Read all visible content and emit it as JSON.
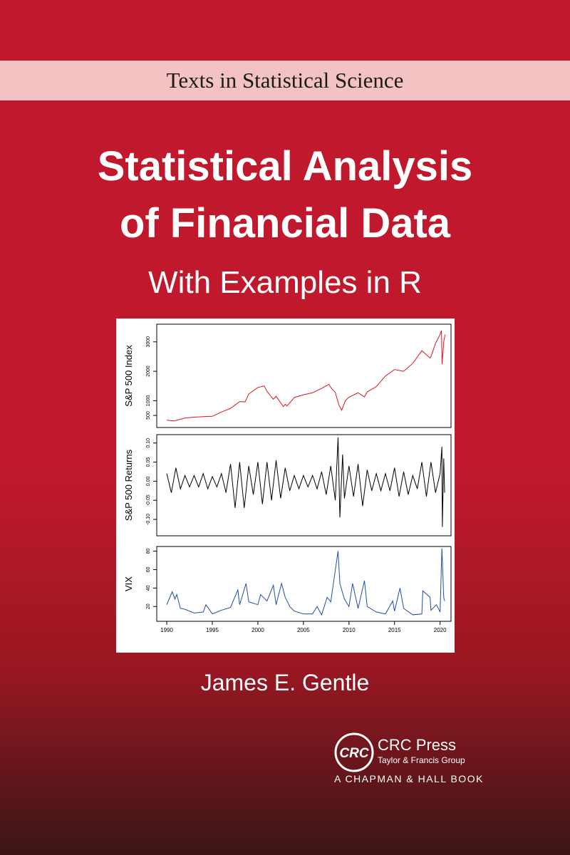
{
  "series_label": "Texts in Statistical Science",
  "title_lines": [
    "Statistical Analysis",
    "of Financial Data"
  ],
  "subtitle": "With Examples in R",
  "author": "James E. Gentle",
  "publisher": {
    "logo": "CRC",
    "name": "CRC Press",
    "group": "Taylor & Francis Group",
    "imprint": "A CHAPMAN & HALL BOOK"
  },
  "chart_data": [
    {
      "type": "line",
      "ylabel": "S&P 500 Index",
      "color": "#e0141e",
      "x": [
        1990,
        1990.8,
        1991,
        1992,
        1993,
        1994,
        1995,
        1996,
        1997,
        1998,
        1998.6,
        1999,
        2000,
        2000.7,
        2001,
        2001.7,
        2002,
        2002.8,
        2003,
        2003.2,
        2004,
        2005,
        2006,
        2007,
        2007.8,
        2008,
        2008.5,
        2008.9,
        2009.2,
        2009.6,
        2010,
        2011,
        2011.7,
        2012,
        2013,
        2014,
        2015,
        2016,
        2017,
        2018,
        2018.9,
        2019,
        2019.5,
        2020,
        2020.15,
        2020.22,
        2020.4,
        2020.55
      ],
      "values": [
        340,
        310,
        330,
        410,
        440,
        460,
        470,
        615,
        740,
        970,
        960,
        1230,
        1450,
        1500,
        1320,
        1050,
        1150,
        800,
        880,
        820,
        1110,
        1200,
        1270,
        1420,
        1560,
        1450,
        1280,
        850,
        680,
        1000,
        1120,
        1270,
        1130,
        1300,
        1480,
        1840,
        2060,
        2000,
        2270,
        2700,
        2450,
        2500,
        2950,
        3250,
        3380,
        2240,
        3000,
        3250
      ],
      "xlim": [
        1988.9,
        2021.2
      ],
      "ylim": [
        90,
        3600
      ],
      "yticks": [
        500,
        1000,
        2000,
        3000
      ]
    },
    {
      "type": "line",
      "ylabel": "S&P 500 Returns",
      "color": "#000000",
      "x": [
        1990,
        1990.5,
        1991,
        1991.5,
        1992,
        1992.5,
        1993,
        1993.5,
        1994,
        1994.5,
        1995,
        1995.5,
        1996,
        1996.5,
        1997,
        1997.5,
        1998,
        1998.5,
        1999,
        1999.5,
        2000,
        2000.5,
        2001,
        2001.5,
        2002,
        2002.5,
        2003,
        2003.5,
        2004,
        2004.5,
        2005,
        2005.5,
        2006,
        2006.5,
        2007,
        2007.5,
        2008,
        2008.5,
        2008.8,
        2009,
        2009.3,
        2009.5,
        2010,
        2010.5,
        2011,
        2011.5,
        2012,
        2012.5,
        2013,
        2013.5,
        2014,
        2014.5,
        2015,
        2015.5,
        2016,
        2016.5,
        2017,
        2017.5,
        2018,
        2018.5,
        2019,
        2019.5,
        2020,
        2020.2,
        2020.25,
        2020.4,
        2020.5
      ],
      "values": [
        0.02,
        -0.03,
        0.035,
        -0.02,
        0.015,
        -0.015,
        0.015,
        -0.015,
        0.02,
        -0.02,
        0.012,
        -0.015,
        0.02,
        -0.03,
        0.045,
        -0.07,
        0.05,
        -0.07,
        0.04,
        -0.035,
        0.05,
        -0.06,
        0.05,
        -0.05,
        0.055,
        -0.045,
        0.035,
        -0.025,
        0.015,
        -0.02,
        0.015,
        -0.015,
        0.015,
        -0.02,
        0.025,
        -0.035,
        0.04,
        -0.05,
        0.115,
        -0.095,
        0.07,
        -0.045,
        0.04,
        -0.04,
        0.045,
        -0.065,
        0.03,
        -0.025,
        0.02,
        -0.025,
        0.02,
        -0.025,
        0.035,
        -0.04,
        0.025,
        -0.035,
        0.015,
        -0.02,
        0.05,
        -0.04,
        0.05,
        -0.03,
        0.02,
        0.09,
        -0.12,
        0.06,
        -0.03
      ],
      "xlim": [
        1988.9,
        2021.2
      ],
      "ylim": [
        -0.143,
        0.122
      ],
      "yticks": [
        {
          "value": -0.1,
          "label": "-0.10"
        },
        -0.05,
        {
          "value": 0,
          "label": "0.00"
        },
        0.05,
        {
          "value": 0.1,
          "label": "0.10"
        }
      ]
    },
    {
      "type": "line",
      "ylabel": "VIX",
      "color": "#1f4fa0",
      "x": [
        1990,
        1990.6,
        1990.9,
        1991.1,
        1991.5,
        1992,
        1993,
        1994,
        1994.3,
        1995,
        1996,
        1997,
        1997.8,
        1998,
        1998.7,
        1999,
        2000,
        2000.3,
        2001,
        2001.7,
        2002,
        2002.6,
        2003,
        2003.5,
        2004,
        2005,
        2006,
        2006.5,
        2007,
        2007.6,
        2008,
        2008.8,
        2009,
        2009.5,
        2010,
        2010.4,
        2011,
        2011.7,
        2012,
        2013,
        2014,
        2014.8,
        2015,
        2015.6,
        2016,
        2017,
        2018,
        2018.1,
        2018.9,
        2019,
        2019.6,
        2020,
        2020.2,
        2020.4,
        2020.5
      ],
      "values": [
        22,
        36,
        28,
        33,
        18,
        17,
        13,
        14,
        22,
        12,
        16,
        19,
        38,
        22,
        45,
        25,
        22,
        33,
        26,
        43,
        22,
        45,
        30,
        20,
        15,
        12,
        12,
        20,
        11,
        30,
        25,
        80,
        45,
        28,
        20,
        45,
        18,
        48,
        20,
        14,
        12,
        26,
        15,
        40,
        18,
        11,
        12,
        37,
        30,
        16,
        22,
        14,
        83,
        30,
        26
      ],
      "xlim": [
        1988.9,
        2021.2
      ],
      "ylim": [
        4,
        85
      ],
      "yticks": [
        20,
        40,
        60,
        80
      ],
      "xticks": [
        1990,
        1995,
        2000,
        2005,
        2010,
        2015,
        2020
      ]
    }
  ]
}
